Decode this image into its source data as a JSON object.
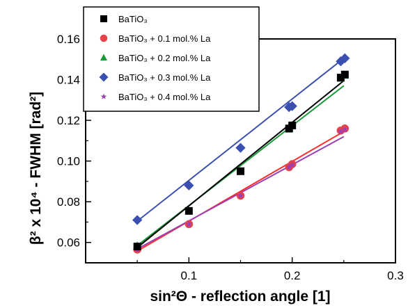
{
  "chart_data": {
    "type": "scatter",
    "xlabel": "sin²Θ - reflection angle  [1]",
    "ylabel": "β² x 10⁴ - FWHM  [rad²]",
    "xlim": [
      0.0,
      0.3
    ],
    "ylim": [
      0.05,
      0.16
    ],
    "x_ticks": [
      "0.1",
      "0.2",
      "0.3"
    ],
    "y_ticks": [
      "0.06",
      "0.08",
      "0.10",
      "0.12",
      "0.14",
      "0.16"
    ],
    "legend_position": "top-left",
    "series": [
      {
        "name": "BaTiO₃",
        "marker": "square",
        "color": "#000000",
        "fit_color": "#000000",
        "x": [
          0.05,
          0.1,
          0.15,
          0.197,
          0.2,
          0.247,
          0.251
        ],
        "y": [
          0.058,
          0.0755,
          0.095,
          0.116,
          0.1175,
          0.141,
          0.1425
        ],
        "fit": {
          "x": [
            0.05,
            0.25
          ],
          "y": [
            0.0575,
            0.1395
          ]
        }
      },
      {
        "name": "BaTiO₃ + 0.1 mol.%  La",
        "marker": "circle",
        "color": "#e8424a",
        "fit_color": "#ff2a2a",
        "x": [
          0.05,
          0.1,
          0.15,
          0.197,
          0.2,
          0.247,
          0.251
        ],
        "y": [
          0.0565,
          0.069,
          0.083,
          0.097,
          0.0985,
          0.115,
          0.116
        ],
        "fit": {
          "x": [
            0.05,
            0.25
          ],
          "y": [
            0.0558,
            0.1145
          ]
        }
      },
      {
        "name": "BaTiO₃ + 0.2 mol.%  La",
        "marker": "triangle",
        "color": "#1a9a3a",
        "fit_color": "#1a9a3a",
        "x": [
          0.05,
          0.1,
          0.15,
          0.197,
          0.2,
          0.247,
          0.251
        ],
        "y": [
          0.0585,
          0.0755,
          0.095,
          0.1155,
          0.1175,
          0.1405,
          0.142
        ],
        "fit": {
          "x": [
            0.05,
            0.25
          ],
          "y": [
            0.0585,
            0.137
          ]
        }
      },
      {
        "name": "BaTiO₃ + 0.3 mol.%  La",
        "marker": "diamond",
        "color": "#3a4fb0",
        "fit_color": "#3a4fb0",
        "x": [
          0.05,
          0.1,
          0.15,
          0.197,
          0.2,
          0.247,
          0.251
        ],
        "y": [
          0.071,
          0.088,
          0.1065,
          0.1265,
          0.127,
          0.149,
          0.1505
        ],
        "fit": {
          "x": [
            0.05,
            0.25
          ],
          "y": [
            0.0705,
            0.1505
          ]
        }
      },
      {
        "name": "BaTiO₃ + 0.4 mol.%  La",
        "marker": "star",
        "color": "#9a3fb4",
        "fit_color": "#9a3fb4",
        "x": [
          0.05,
          0.1,
          0.15,
          0.197,
          0.2,
          0.247,
          0.251
        ],
        "y": [
          0.0565,
          0.069,
          0.083,
          0.097,
          0.098,
          0.1145,
          0.1155
        ],
        "fit": {
          "x": [
            0.05,
            0.25
          ],
          "y": [
            0.0568,
            0.112
          ]
        }
      }
    ]
  }
}
